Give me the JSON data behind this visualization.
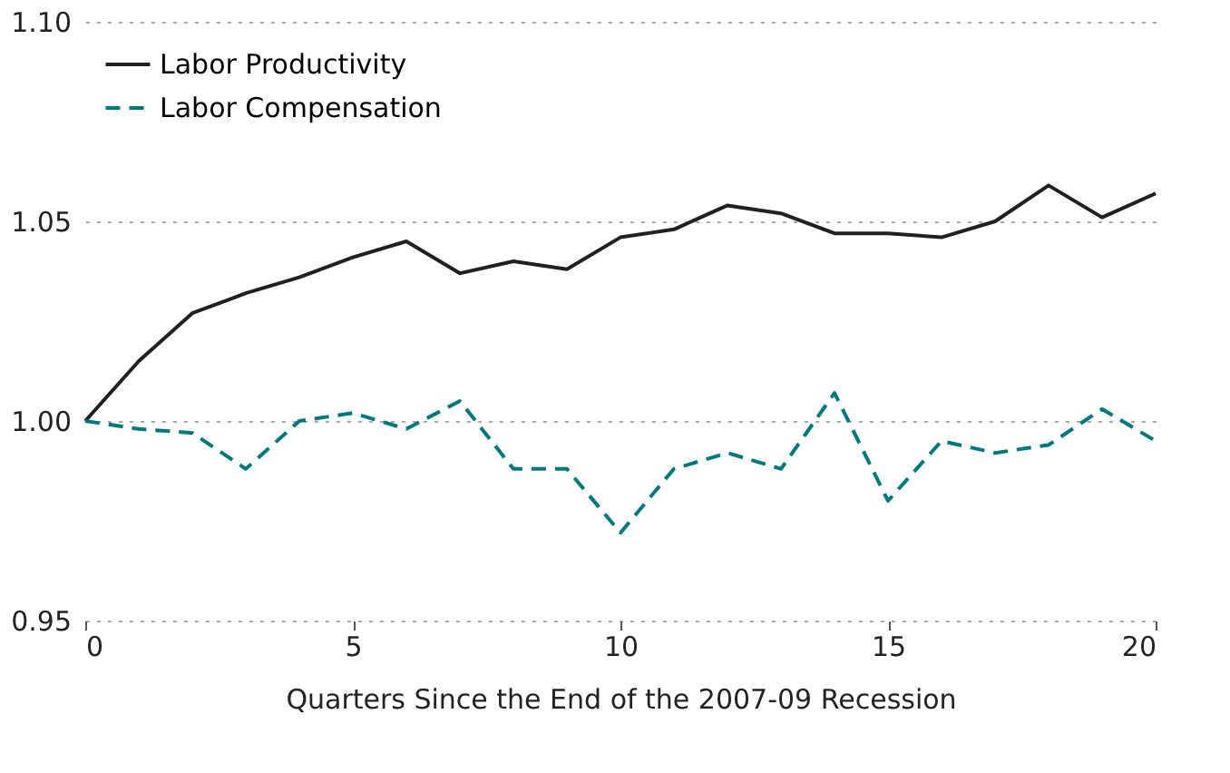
{
  "chart_data": {
    "type": "line",
    "xlabel": "Quarters Since the End of the 2007-09 Recession",
    "x": [
      0,
      1,
      2,
      3,
      4,
      5,
      6,
      7,
      8,
      9,
      10,
      11,
      12,
      13,
      14,
      15,
      16,
      17,
      18,
      19,
      20
    ],
    "series": [
      {
        "name": "Labor Productivity",
        "color": "#231f20",
        "line_style": "solid",
        "values": [
          1.0,
          1.015,
          1.027,
          1.032,
          1.036,
          1.041,
          1.045,
          1.037,
          1.04,
          1.038,
          1.046,
          1.048,
          1.054,
          1.052,
          1.047,
          1.047,
          1.046,
          1.05,
          1.059,
          1.051,
          1.057
        ]
      },
      {
        "name": "Labor Compensation",
        "color": "#00787e",
        "line_style": "dashed",
        "values": [
          1.0,
          0.998,
          0.997,
          0.988,
          1.0,
          1.002,
          0.998,
          1.005,
          0.988,
          0.988,
          0.972,
          0.988,
          0.992,
          0.988,
          1.007,
          0.98,
          0.995,
          0.992,
          0.994,
          1.003,
          0.995
        ]
      }
    ],
    "xlim": [
      0,
      20
    ],
    "xticks": [
      0,
      5,
      10,
      15,
      20
    ],
    "ylim": [
      0.95,
      1.1
    ],
    "yticks": [
      {
        "value": 0.95,
        "label": "0.95"
      },
      {
        "value": 1.0,
        "label": "1.00"
      },
      {
        "value": 1.05,
        "label": "1.05"
      },
      {
        "value": 1.1,
        "label": "1.10"
      }
    ],
    "grid": "y",
    "legend": "top left"
  }
}
